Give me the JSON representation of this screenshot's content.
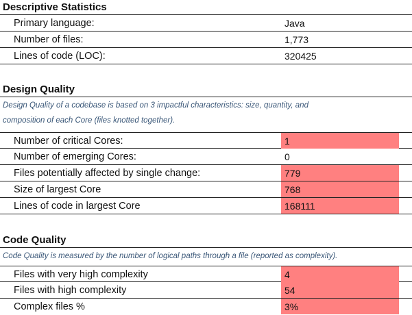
{
  "descriptive": {
    "title": "Descriptive Statistics",
    "rows": [
      {
        "label": "Primary language:",
        "value": "Java"
      },
      {
        "label": "Number of files:",
        "value": "1,773"
      },
      {
        "label": "Lines of code (LOC):",
        "value": "320425"
      }
    ]
  },
  "design": {
    "title": "Design Quality",
    "description_line1": "Design Quality of a codebase is based on 3 impactful characteristics: size, quantity, and",
    "description_line2": "composition of each Core (files knotted together).",
    "rows": [
      {
        "label": "Number of critical Cores:",
        "value": "1",
        "highlight": true
      },
      {
        "label": "Number of emerging Cores:",
        "value": "0",
        "highlight": false
      },
      {
        "label": "Files potentially affected by single change:",
        "value": "779",
        "highlight": true
      },
      {
        "label": "Size of largest Core",
        "value": "768",
        "highlight": true
      },
      {
        "label": "Lines of code in largest Core",
        "value": "168111",
        "highlight": true
      }
    ]
  },
  "code": {
    "title": "Code Quality",
    "description": "Code Quality is measured by the number of logical paths through a file (reported as complexity).",
    "rows": [
      {
        "label": "Files with very high complexity",
        "value": "4",
        "highlight": true
      },
      {
        "label": "Files with high complexity",
        "value": "54",
        "highlight": true
      },
      {
        "label": "Complex files %",
        "value": "3%",
        "highlight": true
      }
    ]
  },
  "colors": {
    "highlight": "#ff8080",
    "description_text": "#3a5778"
  }
}
